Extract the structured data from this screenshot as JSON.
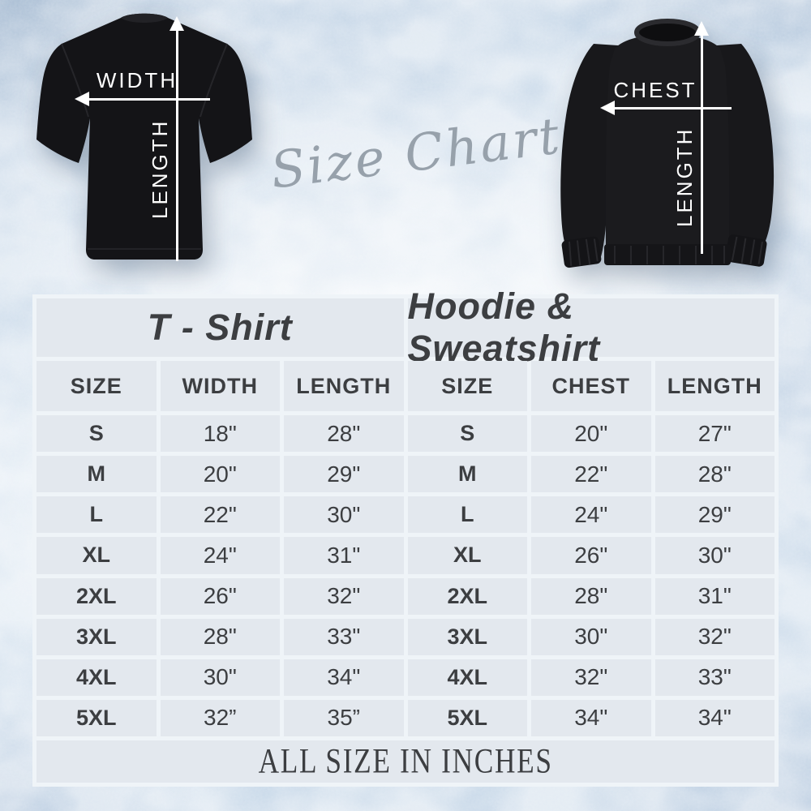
{
  "hero": {
    "script_title": "Size Chart",
    "tshirt": {
      "width_label": "WIDTH",
      "length_label": "LENGTH"
    },
    "sweatshirt": {
      "chest_label": "CHEST",
      "length_label": "LENGTH"
    }
  },
  "tables": [
    {
      "title": "T - Shirt",
      "columns": [
        "SIZE",
        "WIDTH",
        "LENGTH"
      ],
      "rows": [
        [
          "S",
          "18\"",
          "28\""
        ],
        [
          "M",
          "20\"",
          "29\""
        ],
        [
          "L",
          "22\"",
          "30\""
        ],
        [
          "XL",
          "24\"",
          "31\""
        ],
        [
          "2XL",
          "26\"",
          "32\""
        ],
        [
          "3XL",
          "28\"",
          "33\""
        ],
        [
          "4XL",
          "30\"",
          "34\""
        ],
        [
          "5XL",
          "32”",
          "35”"
        ]
      ]
    },
    {
      "title": "Hoodie & Sweatshirt",
      "columns": [
        "SIZE",
        "CHEST",
        "LENGTH"
      ],
      "rows": [
        [
          "S",
          "20\"",
          "27\""
        ],
        [
          "M",
          "22\"",
          "28\""
        ],
        [
          "L",
          "24\"",
          "29\""
        ],
        [
          "XL",
          "26\"",
          "30\""
        ],
        [
          "2XL",
          "28\"",
          "31\""
        ],
        [
          "3XL",
          "30\"",
          "32\""
        ],
        [
          "4XL",
          "32\"",
          "33\""
        ],
        [
          "5XL",
          "34\"",
          "34\""
        ]
      ]
    }
  ],
  "footer_note": "ALL SIZE IN INCHES",
  "colors": {
    "cell_background": "#e3e8ee",
    "grid_gap": "#eff4f8",
    "text": "#3c3e41",
    "garment_black": "#17171a",
    "arrow_white": "#ffffff",
    "script_gray": "#97a1ab"
  }
}
